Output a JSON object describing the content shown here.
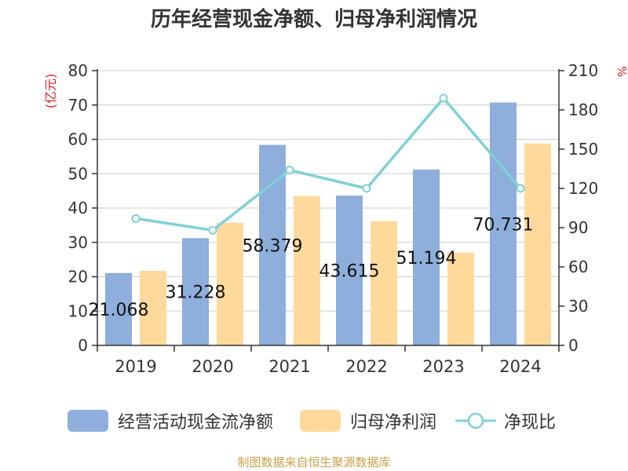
{
  "title": "历年经营现金净额、归母净利润情况",
  "source": "制图数据来自恒生聚源数据库",
  "chart_data": {
    "type": "bar",
    "categories": [
      "2019",
      "2020",
      "2021",
      "2022",
      "2023",
      "2024"
    ],
    "series": [
      {
        "name": "经营活动现金流净额",
        "type": "bar",
        "axis": "left",
        "values": [
          21.068,
          31.228,
          58.379,
          43.615,
          51.194,
          70.731
        ],
        "labels": [
          "21.068",
          "31.228",
          "58.379",
          "43.615",
          "51.194",
          "70.731"
        ]
      },
      {
        "name": "归母净利润",
        "type": "bar",
        "axis": "left",
        "values": [
          21.7,
          35.7,
          43.5,
          36.2,
          27.0,
          58.8
        ]
      },
      {
        "name": "净现比",
        "type": "line",
        "axis": "right",
        "values": [
          97,
          88,
          134,
          120,
          189,
          120
        ]
      }
    ],
    "y_left": {
      "label": "(亿元)",
      "min": 0,
      "max": 80,
      "ticks": [
        0,
        10,
        20,
        30,
        40,
        50,
        60,
        70,
        80
      ]
    },
    "y_right": {
      "label": "%",
      "min": 0,
      "max": 210,
      "ticks": [
        0,
        30,
        60,
        90,
        120,
        150,
        180,
        210
      ]
    },
    "grid": true,
    "legend": "bottom",
    "colors": {
      "bar1": "#8eaedb",
      "bar2": "#ffd99b",
      "line": "#80d0d6",
      "axis": "#333333",
      "grid": "#cccccc",
      "left_unit": "#e02020",
      "right_unit": "#e02020",
      "source": "#c8a14a"
    }
  }
}
